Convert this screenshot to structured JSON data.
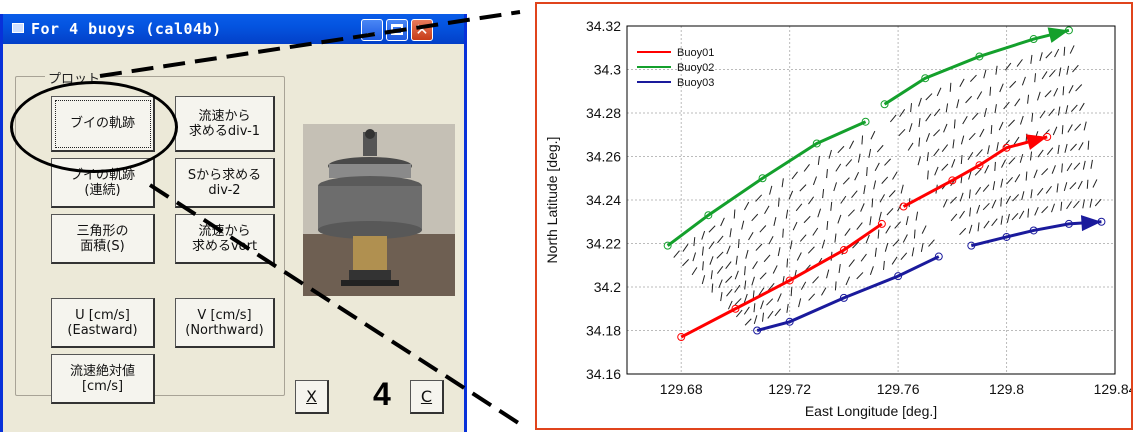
{
  "window": {
    "title": "For 4 buoys (cal04b)",
    "title_buttons": [
      "minimize",
      "maximize",
      "close"
    ]
  },
  "plot_group": {
    "label": "プロット",
    "buttons": {
      "buoy_track": "ブイの軌跡",
      "div1": "流速から\n求めるdiv-1",
      "buoy_track_cont": "ブイの軌跡\n(連続)",
      "div2": "Sから求める\ndiv-2",
      "triangle_area": "三角形の\n面積(S)",
      "vort": "流速から\n求めるvort",
      "u": "U [cm/s]\n(Eastward)",
      "v": "V [cm/s]\n(Northward)",
      "abs_speed": "流速絶対値\n[cm/s]"
    }
  },
  "controls": {
    "x_label": "X",
    "count": "4",
    "c_label": "C"
  },
  "colors": {
    "title_bar": "#0454e0",
    "window_bg": "#ece9d8",
    "panel_border": "#e0441c",
    "buoy01": "#ff0000",
    "buoy02": "#14a02c",
    "buoy03": "#1a1a9c"
  },
  "chart_data": {
    "type": "line",
    "title": "",
    "xlabel": "East Longitude [deg.]",
    "ylabel": "North Latitude [deg.]",
    "xlim": [
      129.66,
      129.84
    ],
    "ylim": [
      34.16,
      34.32
    ],
    "xticks": [
      "129.68",
      "129.72",
      "129.76",
      "129.8",
      "129.84"
    ],
    "yticks": [
      "34.16",
      "34.18",
      "34.2",
      "34.22",
      "34.24",
      "34.26",
      "34.28",
      "34.3",
      "34.32"
    ],
    "grid": true,
    "legend_position": "top-left",
    "series": [
      {
        "name": "Buoy01",
        "color": "#ff0000",
        "segments": [
          [
            [
              129.68,
              34.177
            ],
            [
              129.7,
              34.19
            ],
            [
              129.72,
              34.203
            ],
            [
              129.74,
              34.217
            ],
            [
              129.754,
              34.229
            ]
          ],
          [
            [
              129.762,
              34.237
            ],
            [
              129.78,
              34.249
            ],
            [
              129.79,
              34.256
            ],
            [
              129.8,
              34.264
            ],
            [
              129.815,
              34.269
            ]
          ]
        ]
      },
      {
        "name": "Buoy02",
        "color": "#14a02c",
        "segments": [
          [
            [
              129.675,
              34.219
            ],
            [
              129.69,
              34.233
            ],
            [
              129.71,
              34.25
            ],
            [
              129.73,
              34.266
            ],
            [
              129.748,
              34.276
            ]
          ],
          [
            [
              129.755,
              34.284
            ],
            [
              129.77,
              34.296
            ],
            [
              129.79,
              34.306
            ],
            [
              129.81,
              34.314
            ],
            [
              129.823,
              34.318
            ]
          ]
        ]
      },
      {
        "name": "Buoy03",
        "color": "#1a1a9c",
        "segments": [
          [
            [
              129.708,
              34.18
            ],
            [
              129.72,
              34.184
            ],
            [
              129.74,
              34.195
            ],
            [
              129.76,
              34.205
            ],
            [
              129.775,
              34.214
            ]
          ],
          [
            [
              129.787,
              34.219
            ],
            [
              129.8,
              34.223
            ],
            [
              129.81,
              34.226
            ],
            [
              129.823,
              34.229
            ],
            [
              129.835,
              34.23
            ]
          ]
        ]
      }
    ]
  }
}
